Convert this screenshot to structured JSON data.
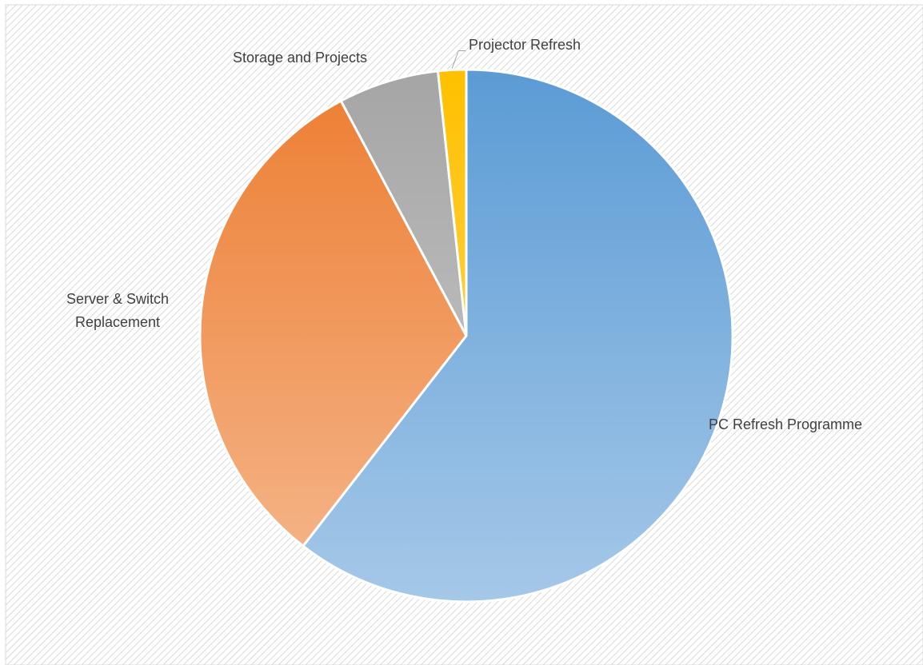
{
  "chart_data": {
    "type": "pie",
    "categories": [
      "PC Refresh Programme",
      "Server & Switch Replacement",
      "Storage and Projects",
      "Projector Refresh"
    ],
    "values": [
      60.5,
      31.7,
      6.1,
      1.7
    ],
    "colors": [
      "#5b9bd5",
      "#ed7d31",
      "#a5a5a5",
      "#ffc000"
    ]
  }
}
